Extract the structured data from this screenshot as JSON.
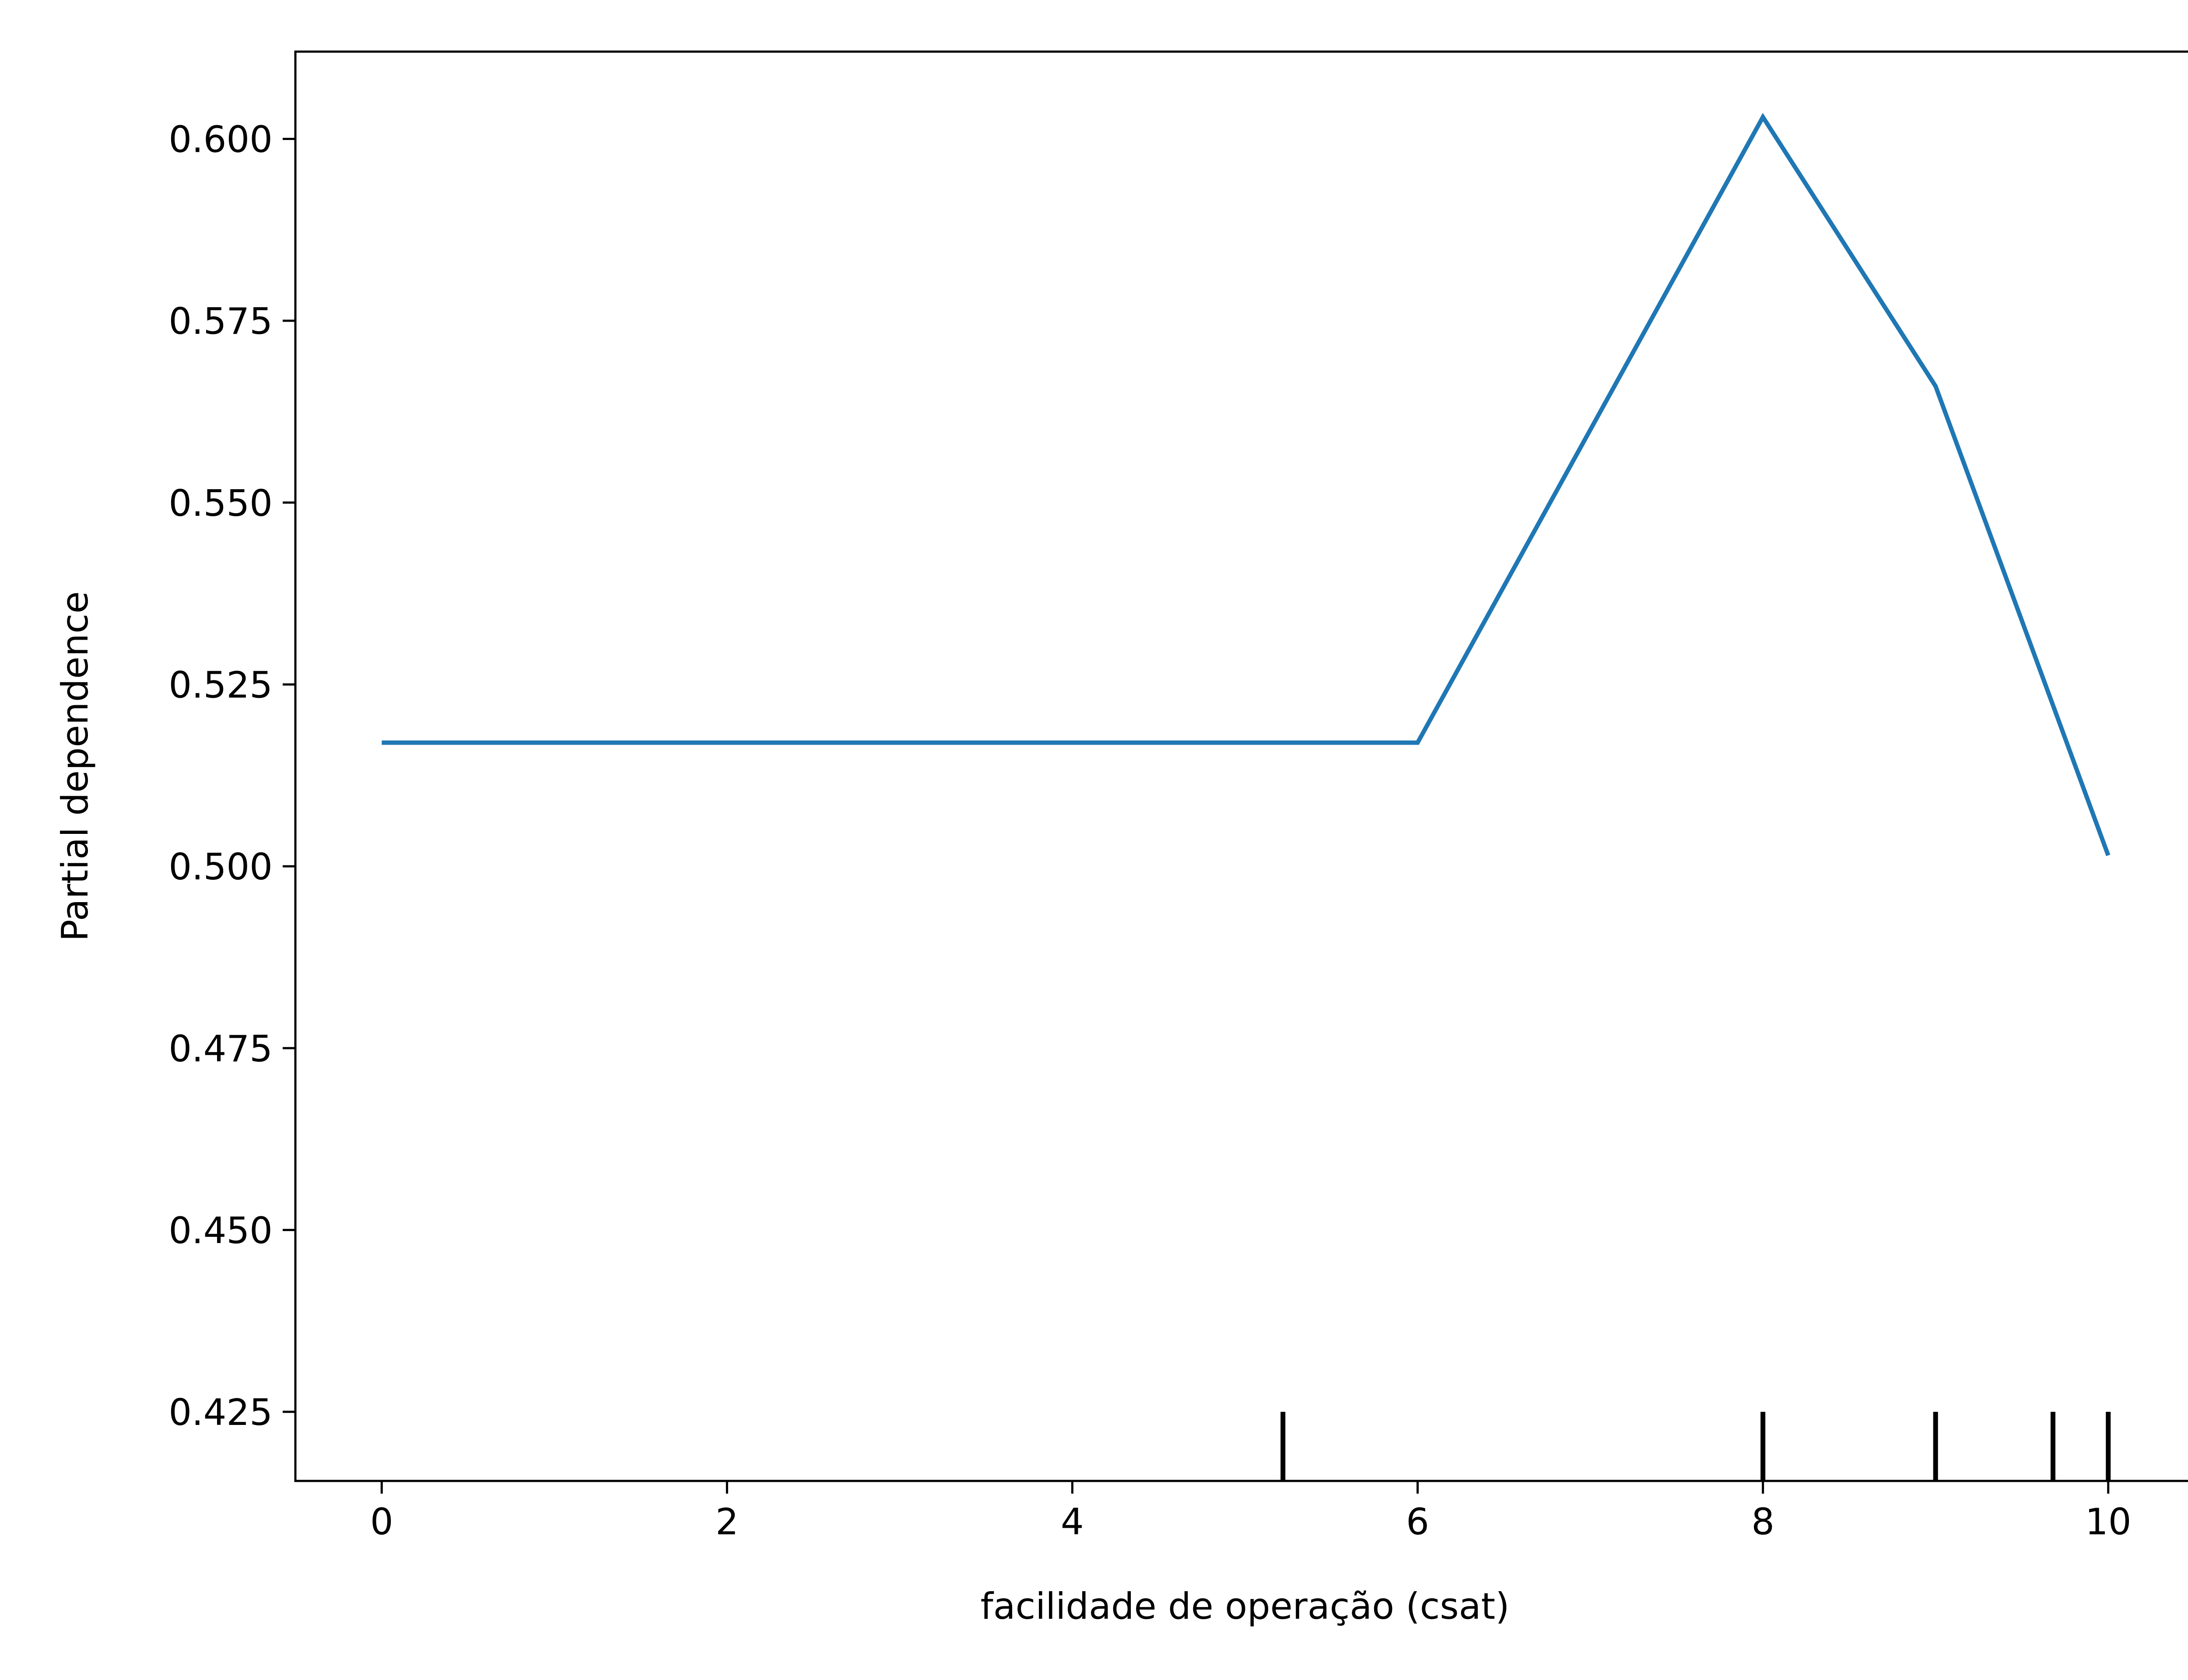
{
  "chart_data": {
    "type": "line",
    "title": "",
    "xlabel": "facilidade de operação (csat)",
    "ylabel": "Partial dependence",
    "xlim": [
      -0.5,
      10.5
    ],
    "ylim": [
      0.4155,
      0.612
    ],
    "x_ticks": [
      0,
      2,
      4,
      6,
      8,
      10
    ],
    "x_tick_labels": [
      "0",
      "2",
      "4",
      "6",
      "8",
      "10"
    ],
    "y_ticks": [
      0.425,
      0.45,
      0.475,
      0.5,
      0.525,
      0.55,
      0.575,
      0.6
    ],
    "y_tick_labels": [
      "0.425",
      "0.450",
      "0.475",
      "0.500",
      "0.525",
      "0.550",
      "0.575",
      "0.600"
    ],
    "grid": false,
    "series": [
      {
        "color": "#1f77b4",
        "x": [
          0,
          1,
          2,
          3,
          4,
          5,
          6,
          7,
          8,
          9,
          10
        ],
        "y": [
          0.517,
          0.517,
          0.517,
          0.517,
          0.517,
          0.517,
          0.517,
          0.56,
          0.603,
          0.566,
          0.5015
        ]
      }
    ],
    "rug": {
      "color": "#000000",
      "x": [
        5.22,
        8.0,
        9.0,
        9.68,
        10.0
      ]
    }
  }
}
